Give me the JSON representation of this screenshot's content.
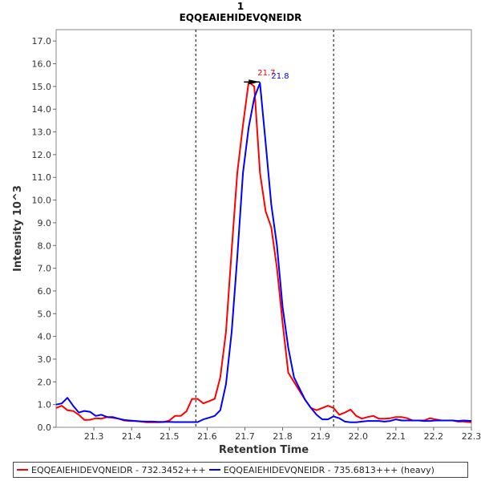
{
  "chart_data": {
    "type": "line",
    "title_lines": [
      "1",
      "EQQEAIEHIDEVQNEIDR"
    ],
    "xlabel": "Retention Time",
    "ylabel": "Intensity 10^3",
    "xlim": [
      21.2,
      22.3
    ],
    "ylim": [
      0,
      17.5
    ],
    "x_ticks": [
      "21.3",
      "21.4",
      "21.5",
      "21.6",
      "21.7",
      "21.8",
      "21.9",
      "22.0",
      "22.1",
      "22.2",
      "22.3"
    ],
    "y_ticks": [
      "0.0",
      "1.0",
      "2.0",
      "3.0",
      "4.0",
      "5.0",
      "6.0",
      "7.0",
      "8.0",
      "9.0",
      "10.0",
      "11.0",
      "12.0",
      "13.0",
      "14.0",
      "15.0",
      "16.0",
      "17.0"
    ],
    "grid": false,
    "integration_bounds": [
      21.57,
      21.935
    ],
    "series": [
      {
        "name": "EQQEAIEHIDEVQNEIDR - 732.3452+++",
        "color": "#ff0000",
        "x": [
          21.2,
          21.215,
          21.23,
          21.245,
          21.26,
          21.275,
          21.29,
          21.305,
          21.32,
          21.335,
          21.35,
          21.365,
          21.38,
          21.395,
          21.41,
          21.425,
          21.44,
          21.455,
          21.47,
          21.485,
          21.5,
          21.515,
          21.53,
          21.545,
          21.56,
          21.575,
          21.59,
          21.605,
          21.62,
          21.635,
          21.65,
          21.665,
          21.68,
          21.695,
          21.71,
          21.725,
          21.74,
          21.755,
          21.77,
          21.785,
          21.8,
          21.815,
          21.83,
          21.845,
          21.86,
          21.875,
          21.89,
          21.905,
          21.92,
          21.935,
          21.95,
          21.965,
          21.98,
          21.995,
          22.01,
          22.025,
          22.04,
          22.055,
          22.07,
          22.085,
          22.1,
          22.115,
          22.13,
          22.145,
          22.16,
          22.175,
          22.19,
          22.205,
          22.22,
          22.235,
          22.25,
          22.265,
          22.28,
          22.3
        ],
        "y": [
          0.85,
          0.95,
          0.75,
          0.72,
          0.55,
          0.32,
          0.33,
          0.4,
          0.38,
          0.45,
          0.42,
          0.38,
          0.3,
          0.28,
          0.27,
          0.25,
          0.22,
          0.22,
          0.22,
          0.23,
          0.3,
          0.5,
          0.5,
          0.7,
          1.25,
          1.25,
          1.05,
          1.15,
          1.25,
          2.2,
          4.2,
          7.8,
          11.2,
          13.3,
          15.2,
          15.0,
          11.2,
          9.5,
          8.8,
          7.0,
          4.6,
          2.4,
          2.0,
          1.6,
          1.2,
          0.85,
          0.75,
          0.85,
          0.95,
          0.85,
          0.55,
          0.65,
          0.78,
          0.5,
          0.38,
          0.45,
          0.5,
          0.38,
          0.38,
          0.4,
          0.45,
          0.45,
          0.4,
          0.3,
          0.3,
          0.3,
          0.4,
          0.35,
          0.3,
          0.3,
          0.3,
          0.25,
          0.25,
          0.22
        ]
      },
      {
        "name": "EQQEAIEHIDEVQNEIDR - 735.6813+++ (heavy)",
        "color": "#0000ff",
        "x": [
          21.2,
          21.215,
          21.23,
          21.245,
          21.26,
          21.275,
          21.29,
          21.305,
          21.32,
          21.335,
          21.35,
          21.365,
          21.38,
          21.395,
          21.41,
          21.425,
          21.44,
          21.455,
          21.47,
          21.485,
          21.5,
          21.515,
          21.53,
          21.545,
          21.56,
          21.575,
          21.59,
          21.605,
          21.62,
          21.635,
          21.65,
          21.665,
          21.68,
          21.695,
          21.71,
          21.725,
          21.74,
          21.755,
          21.77,
          21.785,
          21.8,
          21.815,
          21.83,
          21.845,
          21.86,
          21.875,
          21.89,
          21.905,
          21.92,
          21.935,
          21.95,
          21.965,
          21.98,
          21.995,
          22.01,
          22.025,
          22.04,
          22.055,
          22.07,
          22.085,
          22.1,
          22.115,
          22.13,
          22.145,
          22.16,
          22.175,
          22.19,
          22.205,
          22.22,
          22.235,
          22.25,
          22.265,
          22.28,
          22.3
        ],
        "y": [
          1.0,
          1.05,
          1.3,
          0.95,
          0.65,
          0.72,
          0.68,
          0.5,
          0.55,
          0.45,
          0.45,
          0.38,
          0.32,
          0.3,
          0.28,
          0.26,
          0.25,
          0.25,
          0.24,
          0.24,
          0.24,
          0.23,
          0.23,
          0.23,
          0.23,
          0.23,
          0.35,
          0.42,
          0.5,
          0.75,
          1.9,
          4.2,
          7.5,
          11.2,
          13.2,
          14.5,
          15.15,
          12.5,
          9.8,
          8.0,
          5.3,
          3.5,
          2.2,
          1.7,
          1.2,
          0.85,
          0.55,
          0.35,
          0.35,
          0.48,
          0.4,
          0.25,
          0.22,
          0.22,
          0.25,
          0.28,
          0.28,
          0.28,
          0.25,
          0.28,
          0.35,
          0.3,
          0.3,
          0.3,
          0.3,
          0.28,
          0.28,
          0.3,
          0.3,
          0.3,
          0.3,
          0.28,
          0.3,
          0.28
        ]
      }
    ],
    "peak_annotations": [
      {
        "text": "21.7",
        "x": 21.74,
        "y": 15.2,
        "color": "#ff0000"
      },
      {
        "text": "21.8",
        "x": 21.755,
        "y": 15.2,
        "color": "#0000ff"
      }
    ]
  }
}
